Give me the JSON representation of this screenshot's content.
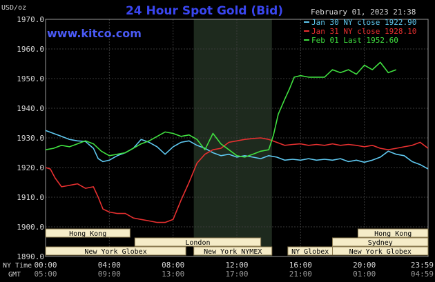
{
  "chart_data": {
    "type": "line",
    "title": "24 Hour Spot Gold (Bid)",
    "subtitle": "www.kitco.com",
    "date_label": "February 01, 2023 21:38",
    "ylabel": "USD/oz",
    "ylim": [
      1890,
      1970
    ],
    "y_ticks": [
      "1970.0",
      "1960.0",
      "1950.0",
      "1940.0",
      "1930.0",
      "1920.0",
      "1910.0",
      "1900.0",
      "1890.0"
    ],
    "x_row_label_ny": "NY Time",
    "x_row_label_gmt": "GMT",
    "x_ticks_ny": [
      "00:00",
      "04:00",
      "08:00",
      "12:00",
      "16:00",
      "20:00",
      "23:59"
    ],
    "x_ticks_gmt": [
      "05:00",
      "09:00",
      "13:00",
      "17:00",
      "21:00",
      "01:00",
      "04:59"
    ],
    "x_range_hours": [
      0,
      24
    ],
    "grid": true,
    "legend_position": "top-right",
    "series": [
      {
        "name": "Jan 30 NY close 1922.90",
        "color": "#5fc8f0",
        "x": [
          0,
          0.5,
          1.0,
          1.5,
          2.0,
          2.5,
          3.0,
          3.3,
          3.6,
          4.0,
          4.5,
          5.0,
          5.5,
          6.0,
          6.5,
          7.0,
          7.5,
          8.0,
          8.5,
          9.0,
          9.5,
          10.0,
          10.5,
          11.0,
          11.5,
          12.0,
          12.5,
          13.0,
          13.5,
          14.0,
          14.5,
          15.0,
          15.5,
          16.0,
          16.5,
          17.0,
          17.5,
          18.0,
          18.5,
          19.0,
          19.5,
          20.0,
          20.5,
          21.0,
          21.5,
          22.0,
          22.5,
          23.0,
          23.5,
          24.0
        ],
        "y": [
          1932.5,
          1931.5,
          1930.5,
          1929.5,
          1929.0,
          1928.8,
          1926.5,
          1923.0,
          1922.0,
          1922.5,
          1924.0,
          1925.0,
          1926.5,
          1929.5,
          1928.5,
          1927.0,
          1924.5,
          1927.0,
          1928.5,
          1929.0,
          1927.5,
          1926.5,
          1925.0,
          1924.0,
          1924.5,
          1923.5,
          1924.0,
          1923.5,
          1923.0,
          1924.0,
          1923.5,
          1922.5,
          1922.8,
          1922.5,
          1923.0,
          1922.5,
          1922.8,
          1922.5,
          1923.0,
          1922.0,
          1922.5,
          1921.8,
          1922.5,
          1923.5,
          1925.5,
          1924.5,
          1924.0,
          1922.0,
          1921.0,
          1919.5
        ]
      },
      {
        "name": "Jan 31 NY close 1928.10",
        "color": "#e83030",
        "x": [
          0,
          0.3,
          0.6,
          1.0,
          1.5,
          2.0,
          2.5,
          3.0,
          3.3,
          3.6,
          4.0,
          4.5,
          5.0,
          5.5,
          6.0,
          6.5,
          7.0,
          7.5,
          8.0,
          8.5,
          9.0,
          9.5,
          10.0,
          10.5,
          11.0,
          11.5,
          12.0,
          12.5,
          13.0,
          13.5,
          14.0,
          14.5,
          15.0,
          15.5,
          16.0,
          16.5,
          17.0,
          17.5,
          18.0,
          18.5,
          19.0,
          19.5,
          20.0,
          20.5,
          21.0,
          21.5,
          22.0,
          22.5,
          23.0,
          23.5,
          24.0
        ],
        "y": [
          1920.0,
          1919.5,
          1916.5,
          1913.5,
          1914.0,
          1914.5,
          1913.0,
          1913.5,
          1910.0,
          1906.0,
          1905.0,
          1904.5,
          1904.5,
          1903.0,
          1902.5,
          1902.0,
          1901.5,
          1901.5,
          1902.5,
          1909.0,
          1915.0,
          1921.5,
          1924.5,
          1926.0,
          1926.5,
          1928.5,
          1929.0,
          1929.5,
          1929.8,
          1930.0,
          1929.5,
          1928.5,
          1927.5,
          1927.8,
          1928.0,
          1927.5,
          1927.8,
          1927.5,
          1928.0,
          1927.5,
          1927.8,
          1927.5,
          1927.0,
          1927.5,
          1926.5,
          1926.0,
          1926.5,
          1927.0,
          1927.5,
          1928.5,
          1926.5
        ]
      },
      {
        "name": "Feb 01 Last 1952.60",
        "color": "#40e040",
        "x": [
          0,
          0.5,
          1.0,
          1.5,
          2.0,
          2.5,
          3.0,
          3.5,
          4.0,
          4.5,
          5.0,
          5.5,
          6.0,
          6.5,
          7.0,
          7.5,
          8.0,
          8.5,
          9.0,
          9.5,
          10.0,
          10.5,
          11.0,
          11.5,
          12.0,
          12.5,
          13.0,
          13.5,
          14.0,
          14.3,
          14.6,
          15.0,
          15.3,
          15.6,
          16.0,
          16.5,
          17.0,
          17.5,
          18.0,
          18.5,
          19.0,
          19.5,
          20.0,
          20.5,
          21.0,
          21.5,
          22.0
        ],
        "y": [
          1926.0,
          1926.5,
          1927.5,
          1927.0,
          1928.0,
          1929.0,
          1928.0,
          1925.5,
          1924.0,
          1924.5,
          1925.0,
          1926.5,
          1928.0,
          1929.0,
          1930.5,
          1932.0,
          1931.5,
          1930.5,
          1931.0,
          1929.5,
          1926.0,
          1931.5,
          1928.0,
          1926.0,
          1924.0,
          1923.5,
          1924.5,
          1925.5,
          1926.0,
          1931.0,
          1938.0,
          1943.0,
          1946.5,
          1950.5,
          1951.0,
          1950.5,
          1950.5,
          1950.5,
          1953.0,
          1952.0,
          1953.0,
          1951.5,
          1954.5,
          1953.0,
          1955.5,
          1952.0,
          1953.0
        ]
      }
    ],
    "sessions": [
      {
        "label": "Hong Kong",
        "row": 1,
        "start_hour": 0,
        "end_hour": 5.3,
        "color": "#f5ecc8"
      },
      {
        "label": "London",
        "row": 2,
        "start_hour": 5.6,
        "end_hour": 13.5,
        "color": "#f5ecc8"
      },
      {
        "label": "New York Globex",
        "row": 3,
        "start_hour": 0,
        "end_hour": 8.8,
        "color": "#f5ecc8"
      },
      {
        "label": "New York NYMEX",
        "row": 3,
        "start_hour": 9.3,
        "end_hour": 14.2,
        "color": "#f5ecc8"
      },
      {
        "label": "NY Globex",
        "row": 3,
        "start_hour": 15.2,
        "end_hour": 18.0,
        "color": "#f5ecc8"
      },
      {
        "label": "Hong Kong",
        "row": 1,
        "start_hour": 19.6,
        "end_hour": 24.0,
        "color": "#f5ecc8"
      },
      {
        "label": "Sydney",
        "row": 2,
        "start_hour": 18.0,
        "end_hour": 24.0,
        "color": "#f5ecc8"
      },
      {
        "label": "New York Globex",
        "row": 3,
        "start_hour": 18.0,
        "end_hour": 24.0,
        "color": "#f5ecc8"
      }
    ],
    "highlight_band_hours": [
      9.3,
      14.2
    ],
    "colors": {
      "background": "#000000",
      "grid": "#3a3a3a",
      "title": "#3a46f0",
      "site": "#4a5af5",
      "highlight": "#1e2a1e"
    }
  }
}
